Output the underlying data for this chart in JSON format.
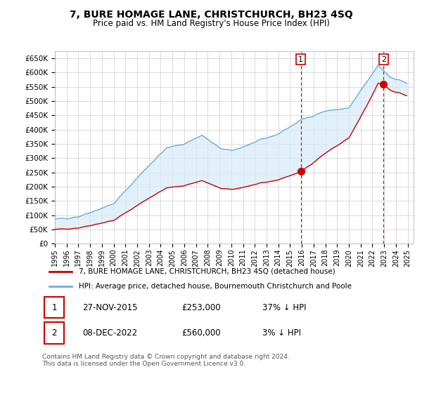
{
  "title": "7, BURE HOMAGE LANE, CHRISTCHURCH, BH23 4SQ",
  "subtitle": "Price paid vs. HM Land Registry's House Price Index (HPI)",
  "ylabel_vals": [
    "£0",
    "£50K",
    "£100K",
    "£150K",
    "£200K",
    "£250K",
    "£300K",
    "£350K",
    "£400K",
    "£450K",
    "£500K",
    "£550K",
    "£600K",
    "£650K"
  ],
  "yticks": [
    0,
    50000,
    100000,
    150000,
    200000,
    250000,
    300000,
    350000,
    400000,
    450000,
    500000,
    550000,
    600000,
    650000
  ],
  "ylim": [
    0,
    675000
  ],
  "xlim_start": 1995.0,
  "xlim_end": 2025.5,
  "hpi_color": "#6baed6",
  "hpi_fill_color": "#d6eaf8",
  "price_color": "#cc0000",
  "transaction1_x": 2015.91,
  "transaction1_y": 253000,
  "transaction2_x": 2022.94,
  "transaction2_y": 560000,
  "legend_label1": "7, BURE HOMAGE LANE, CHRISTCHURCH, BH23 4SQ (detached house)",
  "legend_label2": "HPI: Average price, detached house, Bournemouth Christchurch and Poole",
  "table_row1": [
    "1",
    "27-NOV-2015",
    "£253,000",
    "37% ↓ HPI"
  ],
  "table_row2": [
    "2",
    "08-DEC-2022",
    "£560,000",
    "3% ↓ HPI"
  ],
  "footnote": "Contains HM Land Registry data © Crown copyright and database right 2024.\nThis data is licensed under the Open Government Licence v3.0.",
  "background_color": "#ffffff",
  "grid_color": "#cccccc"
}
